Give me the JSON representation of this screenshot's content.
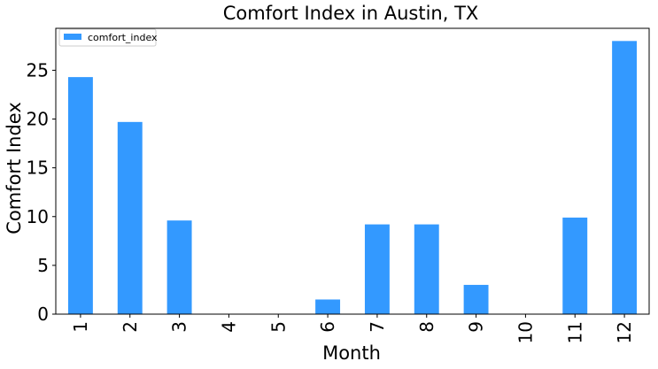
{
  "chart_data": {
    "type": "bar",
    "title": "Comfort Index in Austin, TX",
    "xlabel": "Month",
    "ylabel": "Comfort Index",
    "categories": [
      "1",
      "2",
      "3",
      "4",
      "5",
      "6",
      "7",
      "8",
      "9",
      "10",
      "11",
      "12"
    ],
    "series": [
      {
        "name": "comfort_index",
        "values": [
          24.3,
          19.7,
          9.6,
          0,
          0,
          1.5,
          9.2,
          9.2,
          3.0,
          0,
          9.9,
          28.0
        ],
        "color": "#3399ff"
      }
    ],
    "ylim": [
      0,
      29.3
    ],
    "yticks": [
      0,
      5,
      10,
      15,
      20,
      25
    ],
    "grid": false,
    "legend_position": "top-left"
  }
}
